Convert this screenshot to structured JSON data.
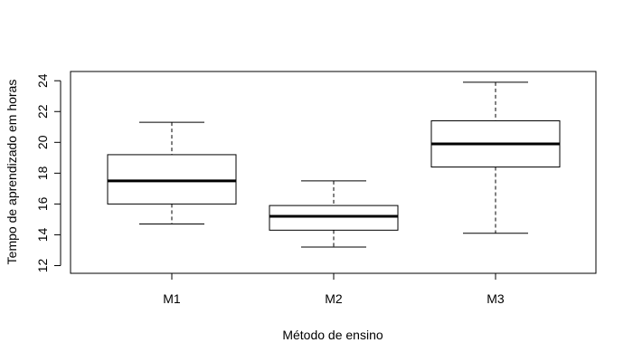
{
  "chart_data": {
    "type": "boxplot",
    "title": "",
    "xlabel": "Método de ensino",
    "ylabel": "Tempo de aprendizado em horas",
    "ylim": [
      11.5,
      24.6
    ],
    "yticks": [
      12,
      14,
      16,
      18,
      20,
      22,
      24
    ],
    "ytick_labels": [
      "12",
      "14",
      "16",
      "18",
      "20",
      "22",
      "24"
    ],
    "grid": false,
    "categories": [
      "M1",
      "M2",
      "M3"
    ],
    "boxes": [
      {
        "category": "M1",
        "whisker_low": 14.7,
        "q1": 16.0,
        "median": 17.5,
        "q3": 19.2,
        "whisker_high": 21.3
      },
      {
        "category": "M2",
        "whisker_low": 13.2,
        "q1": 14.3,
        "median": 15.2,
        "q3": 15.9,
        "whisker_high": 17.5
      },
      {
        "category": "M3",
        "whisker_low": 14.1,
        "q1": 18.4,
        "median": 19.9,
        "q3": 21.4,
        "whisker_high": 23.9
      }
    ]
  }
}
